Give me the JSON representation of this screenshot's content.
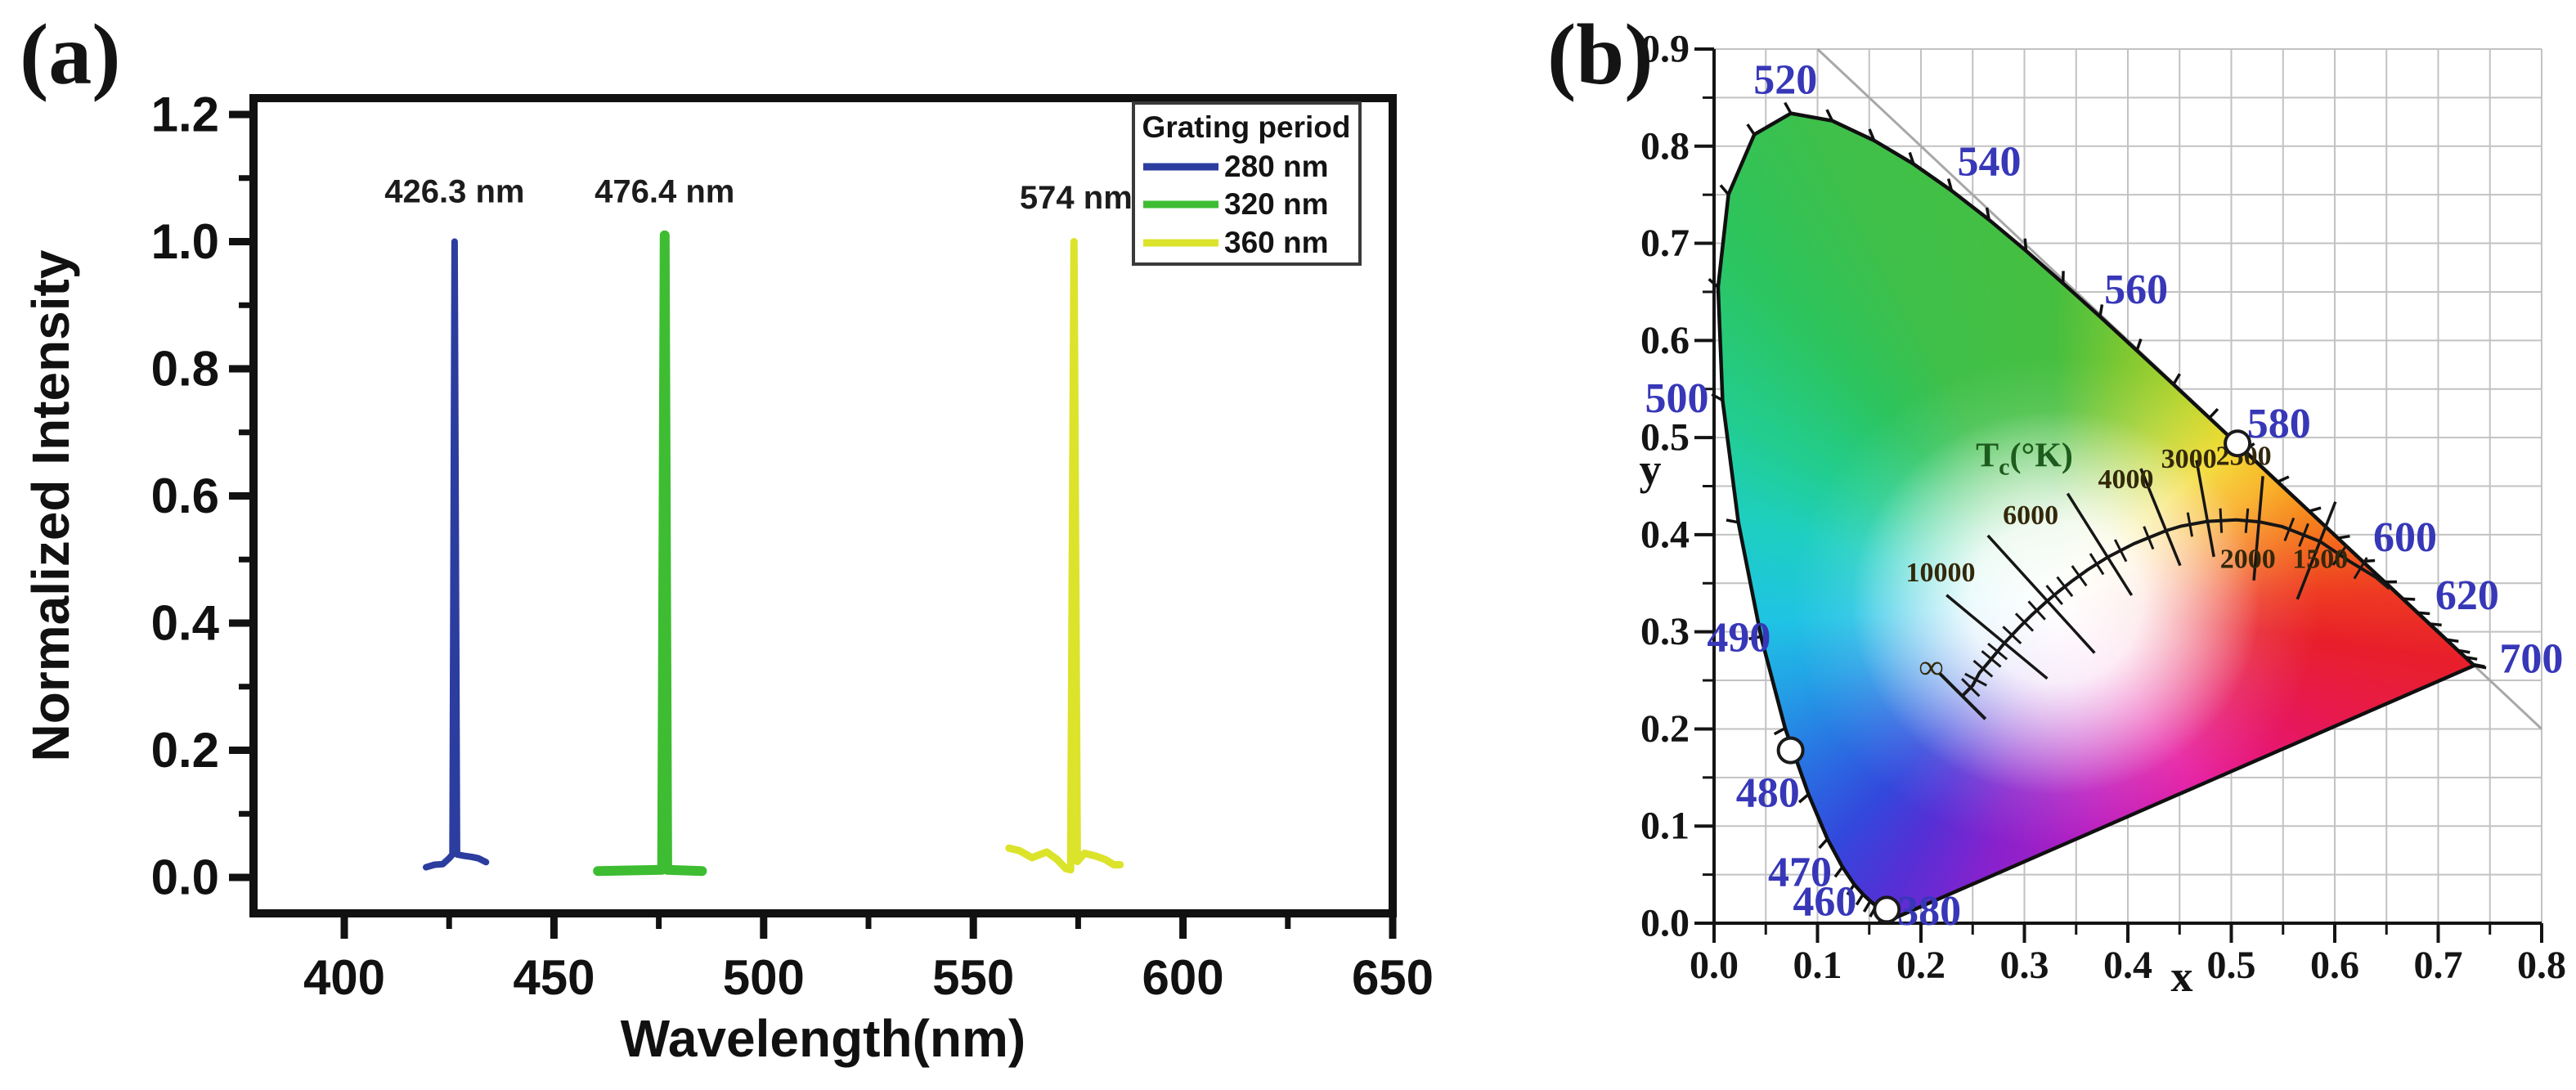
{
  "chart_data": [
    {
      "id": "panel_a",
      "panel_label": "(a)",
      "type": "line",
      "title": "",
      "xlabel": "Wavelength(nm)",
      "ylabel": "Normalized Intensity",
      "xlim": [
        378,
        650
      ],
      "ylim": [
        -0.05,
        1.21
      ],
      "x_ticks": [
        "400",
        "450",
        "500",
        "550",
        "600",
        "650"
      ],
      "x_minor_ticks": [
        425,
        475,
        525,
        575,
        625
      ],
      "y_ticks": [
        "0.0",
        "0.2",
        "0.4",
        "0.6",
        "0.8",
        "1.0",
        "1.2"
      ],
      "y_minor_ticks": [
        0.1,
        0.3,
        0.5,
        0.7,
        0.9,
        1.1
      ],
      "grid": false,
      "legend": {
        "title": "Grating period",
        "position": "top-right",
        "entries": [
          {
            "label": "280 nm",
            "color": "#2c3da0"
          },
          {
            "label": "320 nm",
            "color": "#3ebd32"
          },
          {
            "label": "360 nm",
            "color": "#dce32b"
          }
        ]
      },
      "annotations": [
        {
          "text": "426.3 nm",
          "x": 426.3,
          "y": 1.062
        },
        {
          "text": "476.4 nm",
          "x": 476.4,
          "y": 1.062
        },
        {
          "text": "574 nm",
          "x": 574.5,
          "y": 1.052
        }
      ],
      "series": [
        {
          "name": "280 nm",
          "color": "#2c3da0",
          "width": 8,
          "peak_nm": 426.3,
          "peak_intensity": 1.0,
          "points": [
            [
              419.5,
              0.016
            ],
            [
              421.5,
              0.02
            ],
            [
              423.5,
              0.021
            ],
            [
              425,
              0.03
            ],
            [
              425.8,
              0.036
            ],
            [
              426.3,
              1.0
            ],
            [
              426.9,
              0.036
            ],
            [
              428.5,
              0.034
            ],
            [
              430.5,
              0.032
            ],
            [
              432,
              0.03
            ],
            [
              433.8,
              0.024
            ]
          ]
        },
        {
          "name": "320 nm",
          "color": "#3ebd32",
          "width": 12,
          "peak_nm": 476.4,
          "peak_intensity": 1.01,
          "points": [
            [
              460.5,
              0.01
            ],
            [
              475.8,
              0.012
            ],
            [
              476.4,
              1.01
            ],
            [
              477.0,
              0.012
            ],
            [
              485.3,
              0.01
            ]
          ]
        },
        {
          "name": "360 nm",
          "color": "#dce32b",
          "width": 9,
          "peak_nm": 574.0,
          "peak_intensity": 1.0,
          "points": [
            [
              558.5,
              0.046
            ],
            [
              561,
              0.042
            ],
            [
              564,
              0.031
            ],
            [
              567.5,
              0.04
            ],
            [
              570,
              0.028
            ],
            [
              572,
              0.014
            ],
            [
              573.2,
              0.012
            ],
            [
              574,
              1.0
            ],
            [
              574.8,
              0.025
            ],
            [
              576.5,
              0.038
            ],
            [
              579,
              0.034
            ],
            [
              581.5,
              0.028
            ],
            [
              583.5,
              0.02
            ],
            [
              585,
              0.02
            ]
          ]
        }
      ]
    },
    {
      "id": "panel_b",
      "panel_label": "(b)",
      "type": "scatter",
      "diagram": "CIE 1931 chromaticity diagram",
      "xlabel": "x",
      "ylabel": "y",
      "xlim": [
        0,
        0.8
      ],
      "ylim": [
        0,
        0.9
      ],
      "x_ticks": [
        "0.0",
        "0.1",
        "0.2",
        "0.3",
        "0.4",
        "0.5",
        "0.6",
        "0.7",
        "0.8"
      ],
      "y_ticks": [
        "0.0",
        "0.1",
        "0.2",
        "0.3",
        "0.4",
        "0.5",
        "0.6",
        "0.7",
        "0.8",
        "0.9"
      ],
      "grid": true,
      "grid_step": 0.05,
      "wavelength_labels": [
        {
          "text": "380",
          "x": 0.208,
          "y": 0.012
        },
        {
          "text": "460",
          "x": 0.107,
          "y": 0.022
        },
        {
          "text": "470",
          "x": 0.083,
          "y": 0.052
        },
        {
          "text": "480",
          "x": 0.052,
          "y": 0.134
        },
        {
          "text": "490",
          "x": 0.024,
          "y": 0.294
        },
        {
          "text": "500",
          "x": -0.036,
          "y": 0.54
        },
        {
          "text": "520",
          "x": 0.069,
          "y": 0.868
        },
        {
          "text": "540",
          "x": 0.266,
          "y": 0.784
        },
        {
          "text": "560",
          "x": 0.408,
          "y": 0.652
        },
        {
          "text": "580",
          "x": 0.546,
          "y": 0.514
        },
        {
          "text": "600",
          "x": 0.668,
          "y": 0.397
        },
        {
          "text": "620",
          "x": 0.728,
          "y": 0.337
        },
        {
          "text": "700",
          "x": 0.79,
          "y": 0.272
        }
      ],
      "markers": [
        {
          "x": 0.506,
          "y": 0.494
        },
        {
          "x": 0.074,
          "y": 0.178
        },
        {
          "x": 0.167,
          "y": 0.014
        }
      ],
      "planckian": {
        "label_T": "T",
        "label_sub": "c",
        "label_unit": "(°K)",
        "label_x": 0.3,
        "label_y": 0.47,
        "temperatures": [
          {
            "text": "10000",
            "x": 0.2807,
            "y": 0.2884,
            "lx": 0.219,
            "ly": 0.352
          },
          {
            "text": "6000",
            "x": 0.3221,
            "y": 0.3318,
            "lx": 0.306,
            "ly": 0.411
          },
          {
            "text": "4000",
            "x": 0.3805,
            "y": 0.3768,
            "lx": 0.398,
            "ly": 0.448
          },
          {
            "text": "3000",
            "x": 0.4369,
            "y": 0.4041,
            "lx": 0.459,
            "ly": 0.469
          },
          {
            "text": "2500",
            "x": 0.477,
            "y": 0.4137,
            "lx": 0.512,
            "ly": 0.472
          },
          {
            "text": "2000",
            "x": 0.5267,
            "y": 0.4133,
            "lx": 0.516,
            "ly": 0.366
          },
          {
            "text": "1500",
            "x": 0.5857,
            "y": 0.3931,
            "lx": 0.586,
            "ly": 0.366
          },
          {
            "text": "∞",
            "x": 0.2399,
            "y": 0.234,
            "lx": 0.21,
            "ly": 0.252
          }
        ]
      }
    }
  ]
}
